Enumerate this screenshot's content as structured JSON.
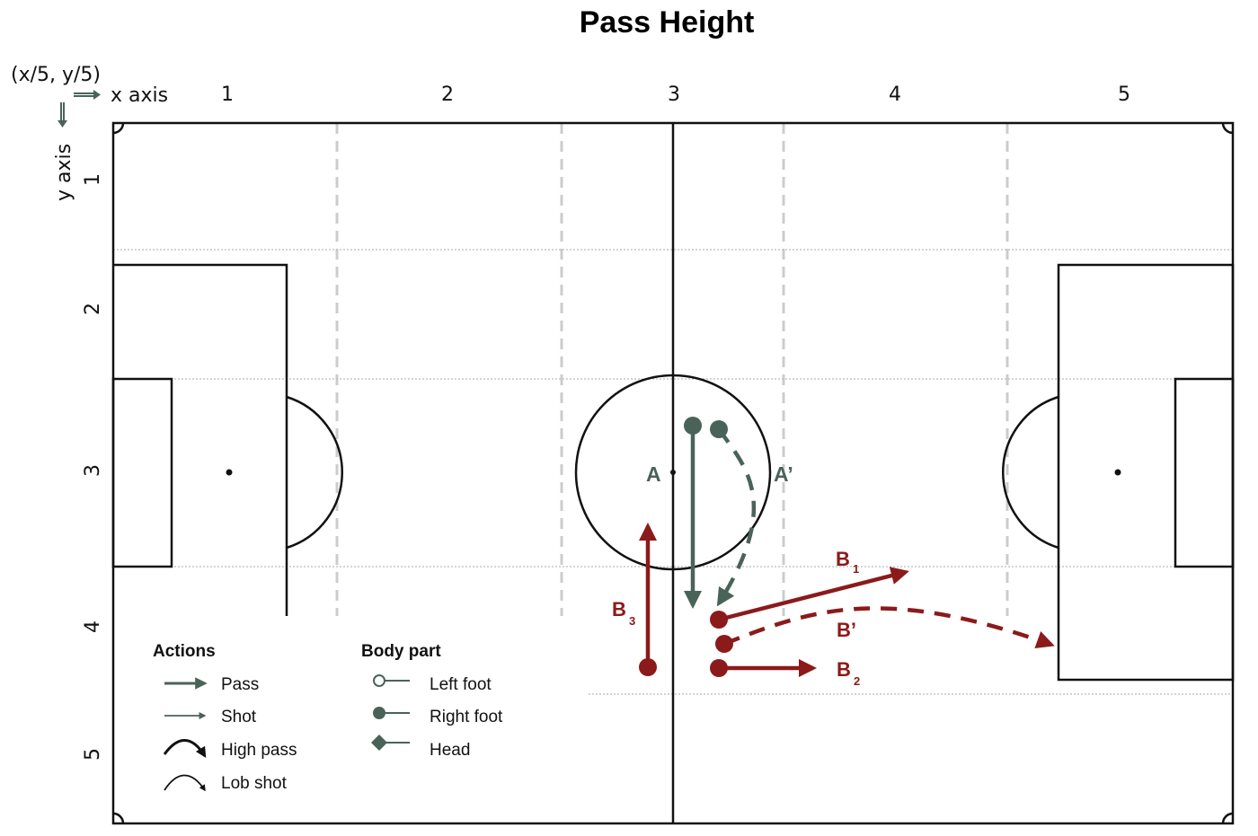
{
  "title": "Pass Height",
  "coord_note": "(x/5, y/5)",
  "x_axis_label": "x axis",
  "y_axis_label": "y axis",
  "x_ticks": [
    "1",
    "2",
    "3",
    "4",
    "5"
  ],
  "y_ticks": [
    "1",
    "2",
    "3",
    "4",
    "5"
  ],
  "labels": {
    "A": "A",
    "A_prime": "A’",
    "B_prime": "B’",
    "B": "B",
    "B1_sub": "1",
    "B2_sub": "2",
    "B3_sub": "3"
  },
  "legend": {
    "actions_title": "Actions",
    "actions": [
      "Pass",
      "Shot",
      "High pass",
      "Lob shot"
    ],
    "body_title": "Body part",
    "body_parts": [
      "Left foot",
      "Right foot",
      "Head"
    ]
  },
  "colors": {
    "team_a": "#4a6358",
    "team_b": "#8b1a1a",
    "pitch_line": "#111111",
    "grid_line": "#cccccc"
  }
}
